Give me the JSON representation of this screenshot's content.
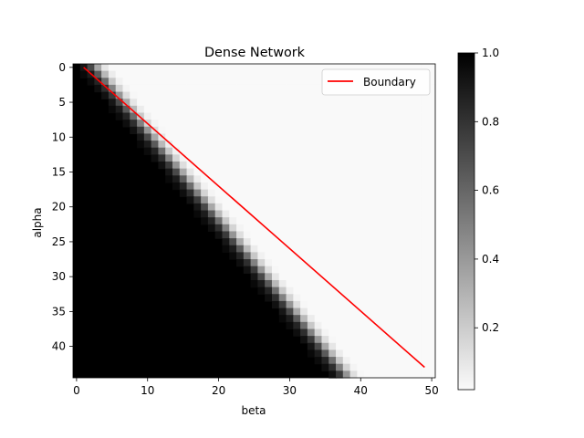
{
  "chart_data": {
    "type": "heatmap",
    "title": "Dense Network",
    "xlabel": "beta",
    "ylabel": "alpha",
    "cmap": "gray_r",
    "n_rows": 45,
    "n_cols": 51,
    "x_ticks": [
      0,
      10,
      20,
      30,
      40,
      50
    ],
    "y_ticks": [
      0,
      5,
      10,
      15,
      20,
      25,
      30,
      35,
      40
    ],
    "value_range": [
      0.0,
      1.0
    ],
    "pattern": "value is 1.0 below the boundary diagonal (beta below roughly alpha), fading through gray over about 4-5 cells to near 0 above it",
    "series": [
      {
        "name": "Boundary",
        "type": "line",
        "color": "#ff0000",
        "x": [
          1,
          49
        ],
        "y": [
          0,
          43
        ]
      }
    ],
    "legend": {
      "position": "top-right",
      "entries": [
        "Boundary"
      ]
    },
    "colorbar": {
      "ticks": [
        0.2,
        0.4,
        0.6,
        0.8,
        1.0
      ],
      "tick_labels": [
        "0.2",
        "0.4",
        "0.6",
        "0.8",
        "1.0"
      ],
      "range": [
        0.02,
        1.0
      ]
    }
  }
}
